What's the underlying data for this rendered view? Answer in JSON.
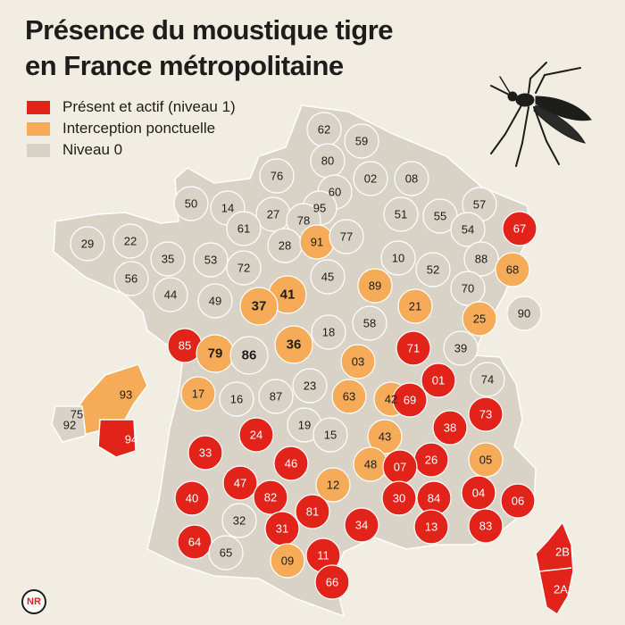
{
  "title_line1": "Présence du moustique tigre",
  "title_line2": "en France métropolitaine",
  "colors": {
    "present": "#e2231a",
    "interception": "#f5ab58",
    "level0": "#d9d3c7",
    "background": "#f2ede3"
  },
  "legend": [
    {
      "key": "present",
      "label": "Présent et actif (niveau 1)"
    },
    {
      "key": "interception",
      "label": "Interception ponctuelle"
    },
    {
      "key": "level0",
      "label": "Niveau 0"
    }
  ],
  "logo_text": "NR",
  "departments": [
    {
      "code": "62",
      "status": "level0"
    },
    {
      "code": "59",
      "status": "level0"
    },
    {
      "code": "80",
      "status": "level0"
    },
    {
      "code": "76",
      "status": "level0"
    },
    {
      "code": "02",
      "status": "level0"
    },
    {
      "code": "08",
      "status": "level0"
    },
    {
      "code": "60",
      "status": "level0"
    },
    {
      "code": "50",
      "status": "level0"
    },
    {
      "code": "14",
      "status": "level0"
    },
    {
      "code": "27",
      "status": "level0"
    },
    {
      "code": "95",
      "status": "level0"
    },
    {
      "code": "78",
      "status": "level0"
    },
    {
      "code": "57",
      "status": "level0"
    },
    {
      "code": "67",
      "status": "present"
    },
    {
      "code": "51",
      "status": "level0"
    },
    {
      "code": "55",
      "status": "level0"
    },
    {
      "code": "54",
      "status": "level0"
    },
    {
      "code": "61",
      "status": "level0"
    },
    {
      "code": "29",
      "status": "level0"
    },
    {
      "code": "22",
      "status": "level0"
    },
    {
      "code": "28",
      "status": "level0"
    },
    {
      "code": "91",
      "status": "interception"
    },
    {
      "code": "77",
      "status": "level0"
    },
    {
      "code": "35",
      "status": "level0"
    },
    {
      "code": "53",
      "status": "level0"
    },
    {
      "code": "10",
      "status": "level0"
    },
    {
      "code": "88",
      "status": "level0"
    },
    {
      "code": "56",
      "status": "level0"
    },
    {
      "code": "72",
      "status": "level0"
    },
    {
      "code": "45",
      "status": "level0"
    },
    {
      "code": "52",
      "status": "level0"
    },
    {
      "code": "68",
      "status": "interception"
    },
    {
      "code": "44",
      "status": "level0"
    },
    {
      "code": "41",
      "status": "interception"
    },
    {
      "code": "89",
      "status": "interception"
    },
    {
      "code": "70",
      "status": "level0"
    },
    {
      "code": "49",
      "status": "level0"
    },
    {
      "code": "37",
      "status": "interception"
    },
    {
      "code": "21",
      "status": "interception"
    },
    {
      "code": "90",
      "status": "level0"
    },
    {
      "code": "25",
      "status": "interception"
    },
    {
      "code": "58",
      "status": "level0"
    },
    {
      "code": "85",
      "status": "present"
    },
    {
      "code": "18",
      "status": "level0"
    },
    {
      "code": "36",
      "status": "interception"
    },
    {
      "code": "71",
      "status": "present"
    },
    {
      "code": "39",
      "status": "level0"
    },
    {
      "code": "79",
      "status": "interception"
    },
    {
      "code": "86",
      "status": "level0"
    },
    {
      "code": "03",
      "status": "interception"
    },
    {
      "code": "01",
      "status": "present"
    },
    {
      "code": "74",
      "status": "level0"
    },
    {
      "code": "93",
      "status": "interception"
    },
    {
      "code": "17",
      "status": "interception"
    },
    {
      "code": "16",
      "status": "level0"
    },
    {
      "code": "87",
      "status": "level0"
    },
    {
      "code": "23",
      "status": "level0"
    },
    {
      "code": "63",
      "status": "interception"
    },
    {
      "code": "42",
      "status": "interception"
    },
    {
      "code": "69",
      "status": "present"
    },
    {
      "code": "73",
      "status": "present"
    },
    {
      "code": "92",
      "status": "level0"
    },
    {
      "code": "75",
      "status": "interception"
    },
    {
      "code": "94",
      "status": "present"
    },
    {
      "code": "19",
      "status": "level0"
    },
    {
      "code": "38",
      "status": "present"
    },
    {
      "code": "15",
      "status": "level0"
    },
    {
      "code": "43",
      "status": "interception"
    },
    {
      "code": "24",
      "status": "present"
    },
    {
      "code": "33",
      "status": "present"
    },
    {
      "code": "26",
      "status": "present"
    },
    {
      "code": "05",
      "status": "interception"
    },
    {
      "code": "46",
      "status": "present"
    },
    {
      "code": "48",
      "status": "interception"
    },
    {
      "code": "07",
      "status": "present"
    },
    {
      "code": "47",
      "status": "present"
    },
    {
      "code": "12",
      "status": "interception"
    },
    {
      "code": "40",
      "status": "present"
    },
    {
      "code": "82",
      "status": "present"
    },
    {
      "code": "30",
      "status": "present"
    },
    {
      "code": "84",
      "status": "present"
    },
    {
      "code": "04",
      "status": "present"
    },
    {
      "code": "06",
      "status": "present"
    },
    {
      "code": "81",
      "status": "present"
    },
    {
      "code": "32",
      "status": "level0"
    },
    {
      "code": "34",
      "status": "present"
    },
    {
      "code": "13",
      "status": "present"
    },
    {
      "code": "83",
      "status": "present"
    },
    {
      "code": "31",
      "status": "present"
    },
    {
      "code": "64",
      "status": "present"
    },
    {
      "code": "65",
      "status": "level0"
    },
    {
      "code": "09",
      "status": "interception"
    },
    {
      "code": "11",
      "status": "present"
    },
    {
      "code": "66",
      "status": "present"
    },
    {
      "code": "2B",
      "status": "present"
    },
    {
      "code": "2A",
      "status": "present"
    }
  ]
}
